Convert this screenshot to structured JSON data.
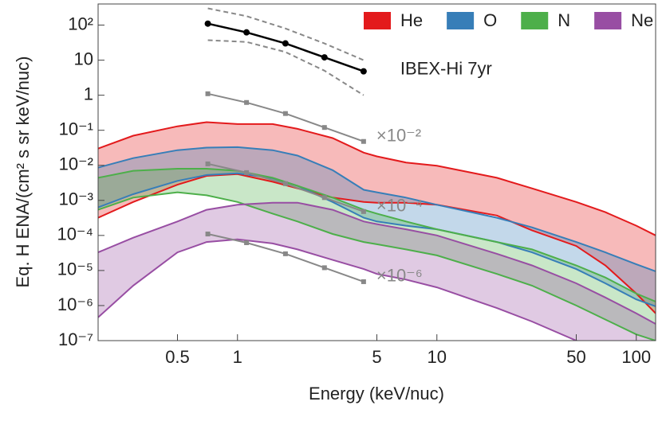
{
  "chart_data": {
    "type": "band",
    "log_x": true,
    "log_y": true,
    "xlabel": "Energy (keV/nuc)",
    "ylabel": "Eq. H ENA/(cm² s sr keV/nuc)",
    "xlim": [
      0.2,
      125
    ],
    "ylim": [
      1e-07,
      400
    ],
    "xticks": [
      0.5,
      1,
      5,
      10,
      50,
      100
    ],
    "yticks": [
      {
        "value": 100,
        "label": "10²"
      },
      10,
      1,
      {
        "value": 0.1,
        "label": "10⁻¹"
      },
      {
        "value": 0.01,
        "label": "10⁻²"
      },
      {
        "value": 0.001,
        "label": "10⁻³"
      },
      {
        "value": 0.0001,
        "label": "10⁻⁴"
      },
      {
        "value": 1e-05,
        "label": "10⁻⁵"
      },
      {
        "value": 1e-06,
        "label": "10⁻⁶"
      },
      {
        "value": 1e-07,
        "label": "10⁻⁷"
      }
    ],
    "legend": "top-right",
    "x": [
      0.2,
      0.3,
      0.5,
      0.7,
      1,
      1.5,
      2,
      3,
      4.3,
      5,
      7,
      10,
      20,
      30,
      50,
      70,
      100,
      125
    ],
    "series": [
      {
        "name": "He",
        "color": "#e31a1c",
        "upper": [
          0.03,
          0.07,
          0.13,
          0.17,
          0.15,
          0.15,
          0.11,
          0.06,
          0.023,
          0.018,
          0.012,
          0.0097,
          0.0044,
          0.0022,
          0.0009,
          0.00046,
          0.00019,
          0.0001
        ],
        "lower": [
          0.00032,
          0.0009,
          0.0028,
          0.005,
          0.0056,
          0.0034,
          0.0022,
          0.0012,
          0.0009,
          0.00086,
          0.00086,
          0.00075,
          0.00037,
          0.00014,
          5e-05,
          1.4e-05,
          2.2e-06,
          6e-07
        ]
      },
      {
        "name": "O",
        "color": "#377eb8",
        "upper": [
          0.0086,
          0.016,
          0.027,
          0.032,
          0.033,
          0.027,
          0.019,
          0.0073,
          0.002,
          0.0017,
          0.0012,
          0.00075,
          0.00032,
          0.00017,
          6.5e-05,
          3.3e-05,
          1.5e-05,
          9.5e-06
        ],
        "lower": [
          0.00063,
          0.0015,
          0.0036,
          0.0053,
          0.0059,
          0.0043,
          0.0026,
          0.0009,
          0.00032,
          0.00025,
          0.00019,
          0.00015,
          6.5e-05,
          3.3e-05,
          1.1e-05,
          4.3e-06,
          1.5e-06,
          9.5e-07
        ]
      },
      {
        "name": "N",
        "color": "#4daf4a",
        "upper": [
          0.0044,
          0.007,
          0.008,
          0.008,
          0.007,
          0.0044,
          0.0026,
          0.0012,
          0.00054,
          0.00042,
          0.00025,
          0.00015,
          6.5e-05,
          4e-05,
          1.4e-05,
          6.3e-06,
          2.2e-06,
          1.3e-06
        ],
        "lower": [
          0.00054,
          0.0012,
          0.0017,
          0.0014,
          0.0009,
          0.00042,
          0.00025,
          0.00011,
          6.5e-05,
          5.6e-05,
          4e-05,
          2.7e-05,
          8e-06,
          3.7e-06,
          1e-06,
          4e-07,
          1.5e-07,
          1e-07
        ]
      },
      {
        "name": "Ne",
        "color": "#984ea3",
        "upper": [
          3.3e-05,
          8.6e-05,
          0.00025,
          0.00054,
          0.00075,
          0.00086,
          0.00086,
          0.00054,
          0.00025,
          0.00021,
          0.00015,
          0.0001,
          3e-05,
          1.4e-05,
          4.3e-06,
          1.7e-06,
          6e-07,
          3e-07
        ],
        "lower": [
          4.6e-07,
          3.7e-06,
          3.3e-05,
          6.5e-05,
          7.7e-05,
          5.9e-05,
          4e-05,
          2e-05,
          1.1e-05,
          8e-06,
          5.5e-06,
          3.3e-06,
          8.5e-07,
          3.5e-07,
          1e-07,
          5e-08,
          2.5e-08,
          1.5e-08
        ]
      }
    ],
    "ibex": {
      "name": "IBEX-Hi 7yr",
      "color": "#000000",
      "range_color": "#888888",
      "x": [
        0.71,
        1.11,
        1.74,
        2.73,
        4.29
      ],
      "values": [
        110,
        62,
        30,
        12,
        4.8
      ],
      "upper": [
        300,
        180,
        80,
        30,
        10
      ],
      "lower": [
        37,
        33,
        17,
        5,
        1.0
      ]
    },
    "scaled": [
      {
        "label": "×10⁻²",
        "color": "#888888",
        "values": [
          1.1,
          0.62,
          0.3,
          0.12,
          0.048
        ]
      },
      {
        "label": "×10⁻⁴",
        "color": "#888888",
        "values": [
          0.011,
          0.0062,
          0.003,
          0.0012,
          0.00048
        ]
      },
      {
        "label": "×10⁻⁶",
        "color": "#888888",
        "values": [
          0.00011,
          6.2e-05,
          3e-05,
          1.2e-05,
          4.8e-06
        ]
      }
    ]
  }
}
